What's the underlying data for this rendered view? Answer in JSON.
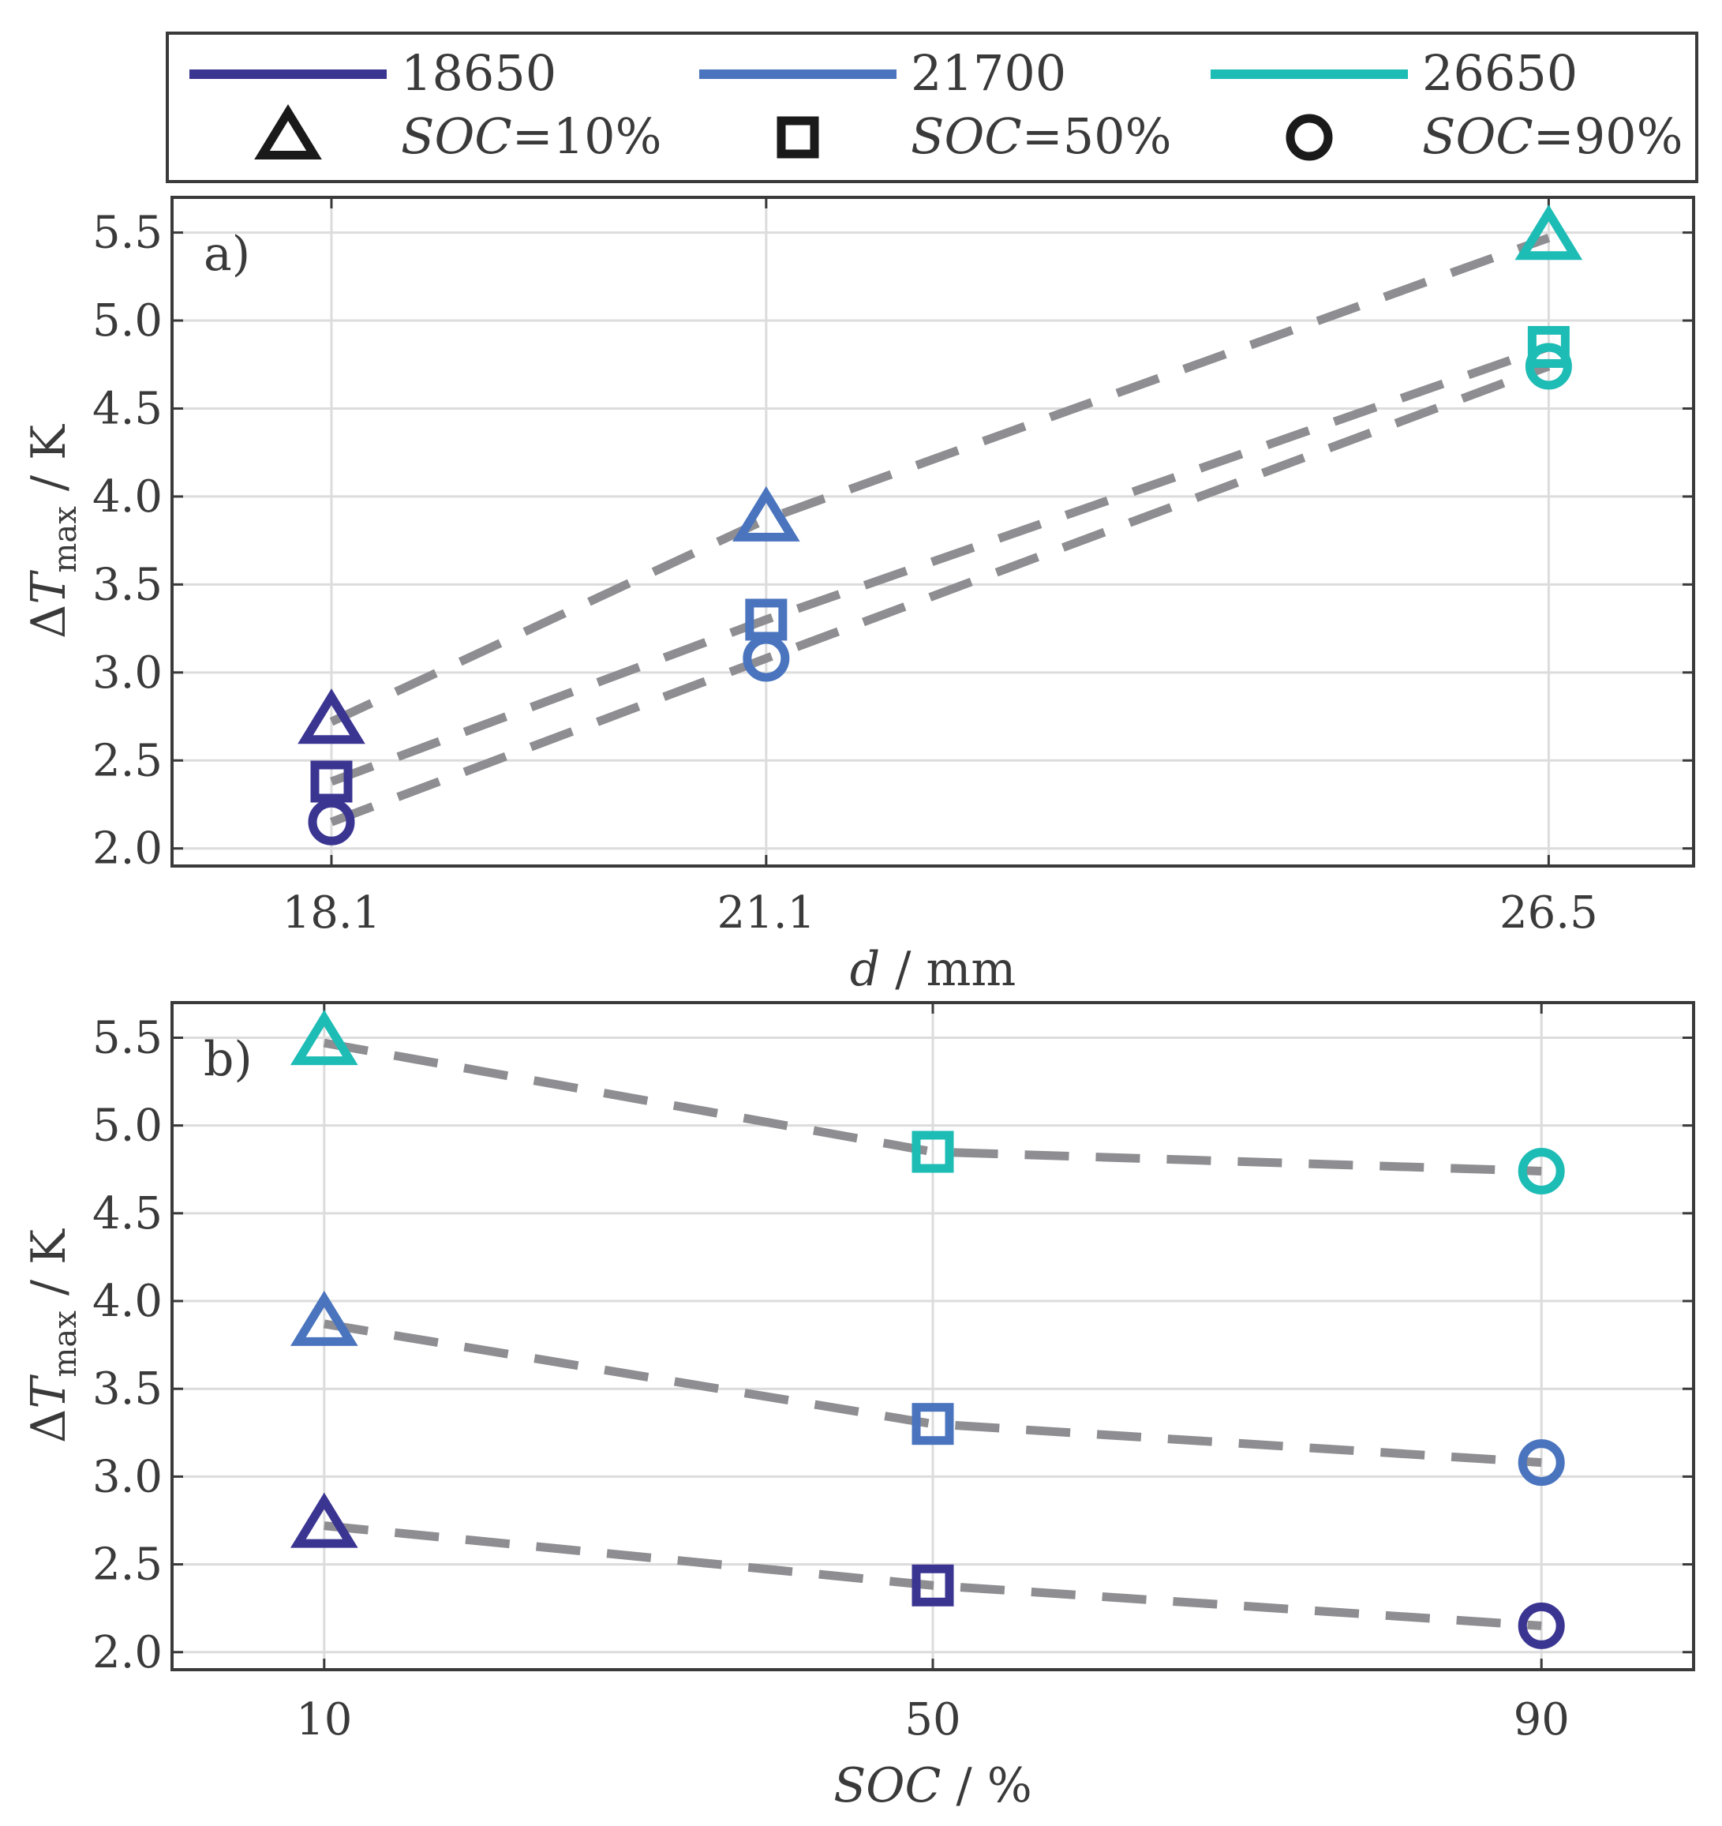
{
  "legend": {
    "series": [
      {
        "label": "18650",
        "color": "#3b3592"
      },
      {
        "label": "21700",
        "color": "#4a74be"
      },
      {
        "label": "26650",
        "color": "#1dbcb5"
      }
    ],
    "markers": [
      {
        "shape": "triangle",
        "var": "SOC",
        "rest": "=10%"
      },
      {
        "shape": "square",
        "var": "SOC",
        "rest": "=50%"
      },
      {
        "shape": "circle",
        "var": "SOC",
        "rest": "=90%"
      }
    ]
  },
  "chart_data": [
    {
      "type": "scatter",
      "panel_label": "a)",
      "ylabel": {
        "prefix": "ΔT",
        "sub": "max",
        "suffix": " / K"
      },
      "xlabel": {
        "var": "d",
        "unit": " / mm"
      },
      "ylim": [
        1.9,
        5.7
      ],
      "yticks": [
        "2.0",
        "2.5",
        "3.0",
        "3.5",
        "4.0",
        "4.5",
        "5.0",
        "5.5"
      ],
      "categories": [
        "18.1",
        "21.1",
        "26.5"
      ],
      "x_values": [
        18.1,
        21.1,
        26.5
      ],
      "xlim": [
        17.0,
        27.5
      ],
      "series": [
        {
          "name": "SOC=10%",
          "marker": "triangle",
          "values": [
            2.72,
            3.87,
            5.47
          ]
        },
        {
          "name": "SOC=50%",
          "marker": "square",
          "values": [
            2.38,
            3.3,
            4.85
          ]
        },
        {
          "name": "SOC=90%",
          "marker": "circle",
          "values": [
            2.15,
            3.08,
            4.74
          ]
        }
      ],
      "point_colors": [
        "#3b3592",
        "#4a74be",
        "#1dbcb5"
      ],
      "line_color": "#8e8e92"
    },
    {
      "type": "scatter",
      "panel_label": "b)",
      "ylabel": {
        "prefix": "ΔT",
        "sub": "max",
        "suffix": " / K"
      },
      "xlabel": {
        "var": "SOC",
        "unit": " / %"
      },
      "ylim": [
        1.9,
        5.7
      ],
      "yticks": [
        "2.0",
        "2.5",
        "3.0",
        "3.5",
        "4.0",
        "4.5",
        "5.0",
        "5.5"
      ],
      "categories": [
        "10",
        "50",
        "90"
      ],
      "x_values": [
        10,
        50,
        90
      ],
      "xlim": [
        0,
        100
      ],
      "markers": [
        "triangle",
        "square",
        "circle"
      ],
      "series": [
        {
          "name": "18650",
          "color": "#3b3592",
          "values": [
            2.72,
            2.38,
            2.15
          ]
        },
        {
          "name": "21700",
          "color": "#4a74be",
          "values": [
            3.87,
            3.3,
            3.08
          ]
        },
        {
          "name": "26650",
          "color": "#1dbcb5",
          "values": [
            5.47,
            4.85,
            4.74
          ]
        }
      ],
      "line_color": "#8e8e92"
    }
  ]
}
